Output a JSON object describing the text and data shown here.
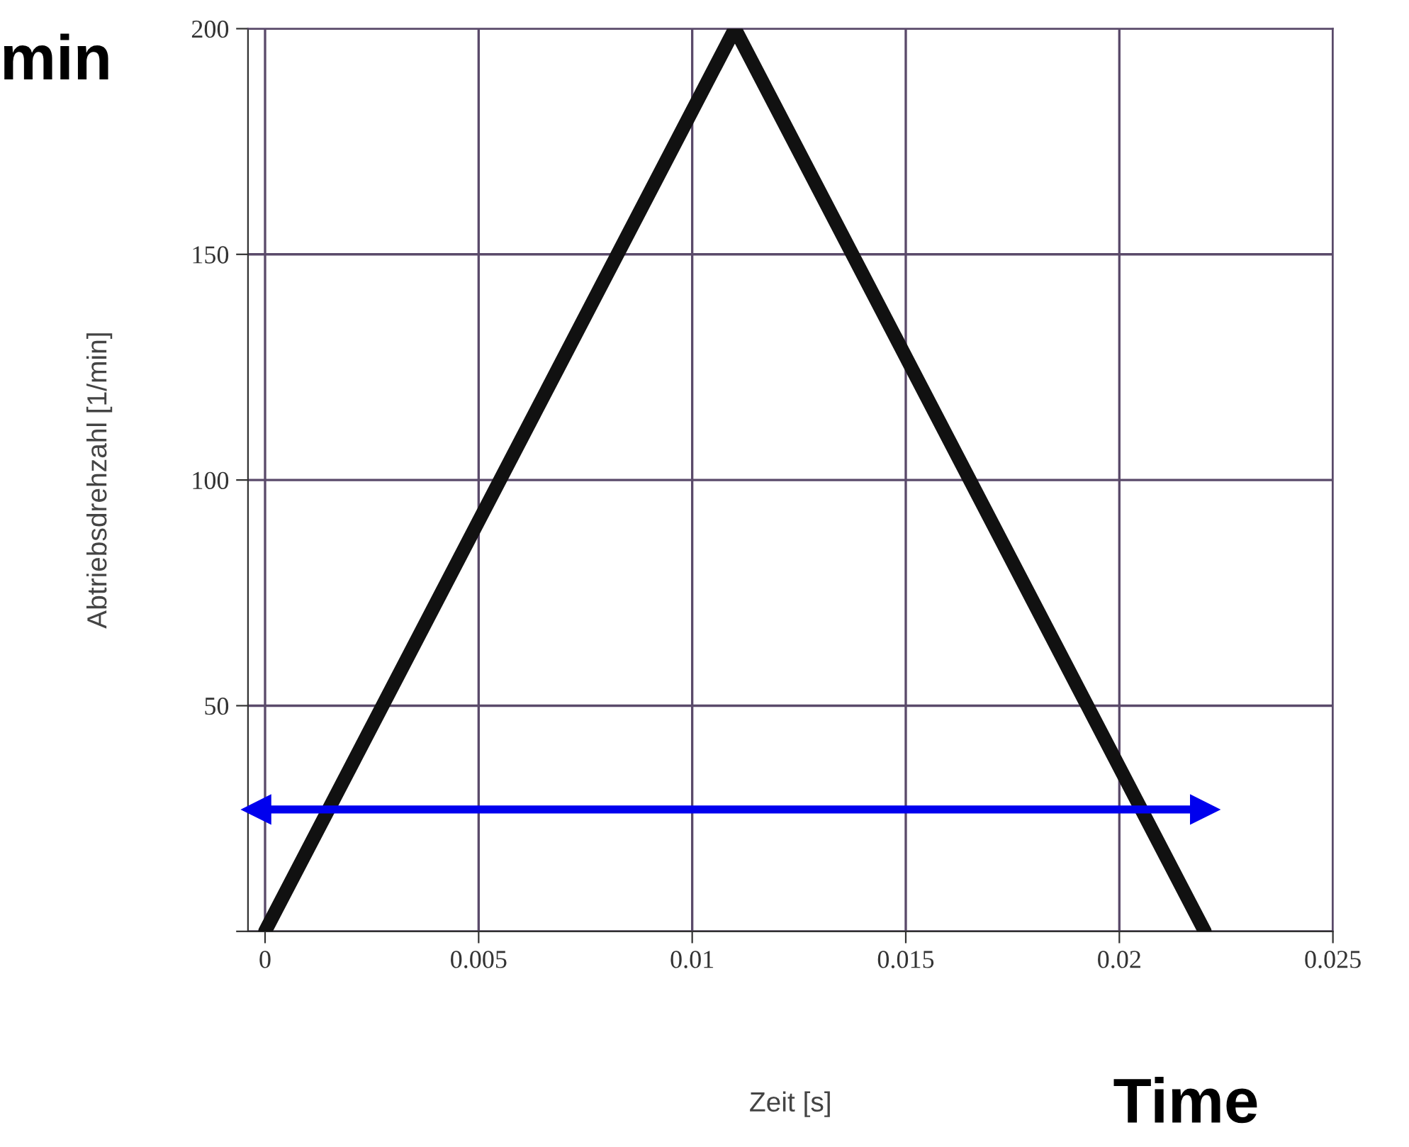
{
  "chart_data": {
    "type": "line",
    "xlabel": "Zeit [s]",
    "ylabel": "Abtriebsdrehzahl [1/min]",
    "x": [
      0,
      0.011,
      0.022
    ],
    "series": [
      {
        "color": "#111111",
        "values": [
          0,
          200,
          0
        ]
      },
      {
        "color": "#0000ee",
        "x": [
          -0.0002,
          0.022
        ],
        "values": [
          27,
          27
        ],
        "marker": "triangle"
      }
    ],
    "xlim": [
      -0.0004,
      0.025
    ],
    "ylim": [
      0,
      200
    ],
    "xticks": [
      0,
      0.005,
      0.01,
      0.015,
      0.02,
      0.025
    ],
    "yticks": [
      {
        "value": 0,
        "label": null
      },
      50,
      100,
      150,
      200
    ],
    "grid": true,
    "annotations": [
      "min",
      "Time"
    ]
  }
}
